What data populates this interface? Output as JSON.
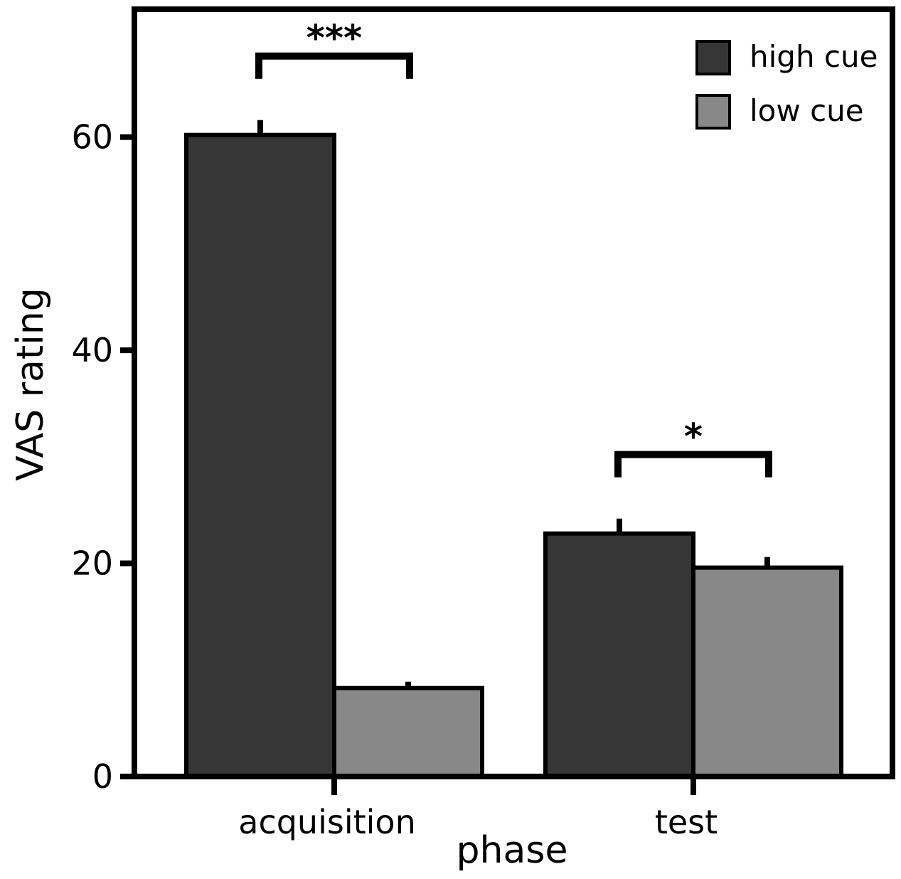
{
  "chart_data": {
    "type": "bar",
    "title": "",
    "xlabel": "phase",
    "ylabel": "VAS rating",
    "categories": [
      "acquisition",
      "test"
    ],
    "ylim": [
      0,
      72
    ],
    "yticks": [
      0,
      20,
      40,
      60
    ],
    "grid": false,
    "legend": "top-right",
    "series": [
      {
        "name": "high cue",
        "color": "#363636",
        "values": [
          60.2,
          22.8
        ],
        "errors": [
          1.4,
          1.4
        ]
      },
      {
        "name": "low cue",
        "color": "#888888",
        "values": [
          8.3,
          19.6
        ],
        "errors": [
          0.6,
          1.0
        ]
      }
    ],
    "annotations": [
      {
        "category": "acquisition",
        "label": "***"
      },
      {
        "category": "test",
        "label": "*"
      }
    ]
  }
}
